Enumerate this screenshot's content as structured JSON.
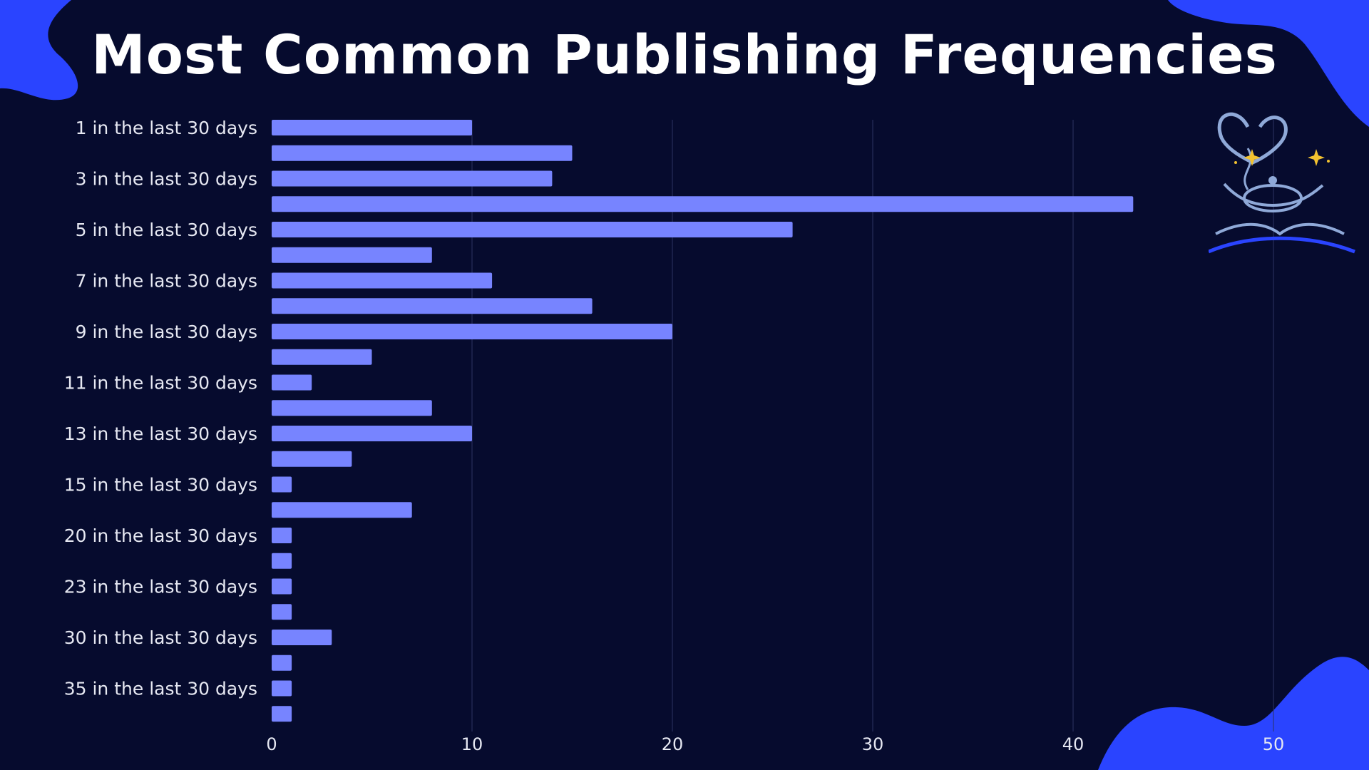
{
  "title": "Most Common Publishing Frequencies",
  "colors": {
    "background": "#060b2e",
    "bar": "#7784ff",
    "blob": "#2a44ff",
    "grid": "#2c3361",
    "text": "#e6e8f2"
  },
  "logo": {
    "icon": "teapot-book-heart-logo"
  },
  "chart_data": {
    "type": "bar",
    "orientation": "horizontal",
    "title": "Most Common Publishing Frequencies",
    "xlabel": "",
    "ylabel": "",
    "xlim": [
      0,
      50
    ],
    "xticks": [
      0,
      10,
      20,
      30,
      40,
      50
    ],
    "grid": true,
    "categories": [
      "1 in the last 30 days",
      "",
      "3 in the last 30 days",
      "",
      "5 in the last 30 days",
      "",
      "7 in the last 30 days",
      "",
      "9 in the last 30 days",
      "",
      "11 in the last 30 days",
      "",
      "13 in the last 30 days",
      "",
      "15 in the last 30 days",
      "",
      "20 in the last 30 days",
      "",
      "23 in the last 30 days",
      "",
      "30 in the last 30 days",
      "",
      "35 in the last 30 days",
      ""
    ],
    "values": [
      10,
      15,
      14,
      43,
      26,
      8,
      11,
      16,
      20,
      5,
      2,
      8,
      10,
      4,
      1,
      7,
      1,
      1,
      1,
      1,
      3,
      1,
      1,
      1
    ]
  }
}
